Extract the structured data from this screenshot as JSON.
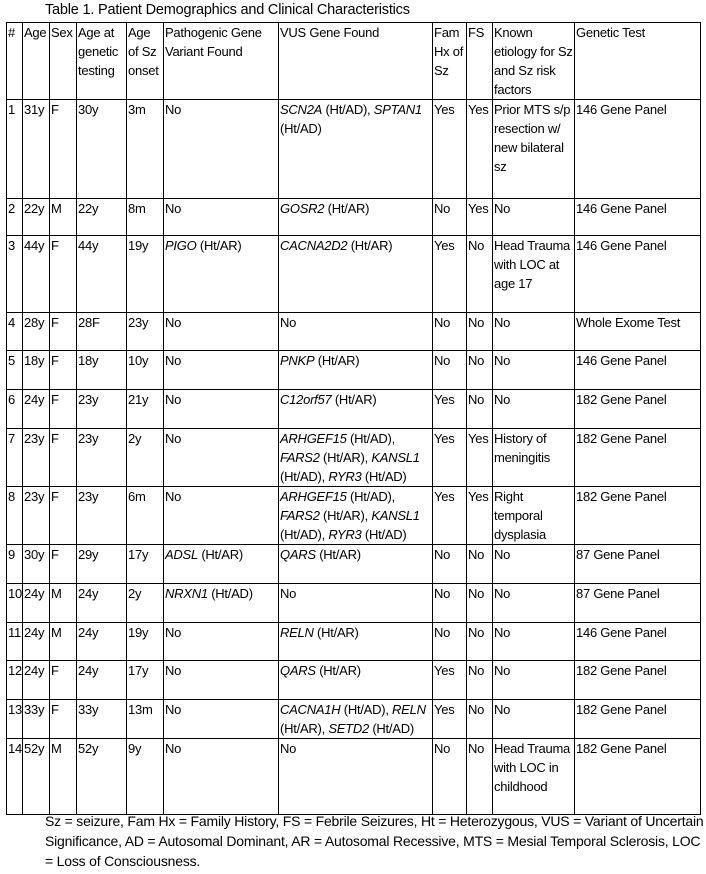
{
  "title": "Table 1. Patient Demographics and Clinical Characteristics",
  "headers": [
    "#",
    "Age",
    "Sex",
    "Age at genetic testing",
    "Age of Sz onset",
    "Pathogenic Gene Variant Found",
    "VUS Gene Found",
    "Fam Hx of Sz",
    "FS",
    "Known etiology for Sz and Sz risk factors",
    "Genetic Test"
  ],
  "rows": [
    {
      "num": "1",
      "age": "31y",
      "sex": "F",
      "age_test": "30y",
      "onset": "3m",
      "pathogenic": [
        {
          "text": "No"
        }
      ],
      "vus": [
        {
          "text": "SCN2A",
          "italic": true
        },
        {
          "text": " (Ht/AD), "
        },
        {
          "text": "SPTAN1",
          "italic": true
        },
        {
          "text": " (Ht/AD)"
        }
      ],
      "famhx": "Yes",
      "fs": "Yes",
      "etiology": "Prior MTS s/p resection w/ new bilateral sz",
      "test": "146 Gene Panel"
    },
    {
      "num": "2",
      "age": "22y",
      "sex": "M",
      "age_test": "22y",
      "onset": "8m",
      "pathogenic": [
        {
          "text": "No"
        }
      ],
      "vus": [
        {
          "text": "GOSR2",
          "italic": true
        },
        {
          "text": " (Ht/AR)"
        }
      ],
      "famhx": "No",
      "fs": "Yes",
      "etiology": "No",
      "test": "146 Gene Panel"
    },
    {
      "num": "3",
      "age": "44y",
      "sex": "F",
      "age_test": "44y",
      "onset": "19y",
      "pathogenic": [
        {
          "text": "PIGO",
          "italic": true
        },
        {
          "text": " (Ht/AR)"
        }
      ],
      "vus": [
        {
          "text": "CACNA2D2",
          "italic": true
        },
        {
          "text": " (Ht/AR)"
        }
      ],
      "famhx": "Yes",
      "fs": "No",
      "etiology": "Head Trauma with LOC at age 17",
      "test": "146 Gene Panel"
    },
    {
      "num": "4",
      "age": "28y",
      "sex": "F",
      "age_test": "28F",
      "onset": "23y",
      "pathogenic": [
        {
          "text": "No"
        }
      ],
      "vus": [
        {
          "text": "No"
        }
      ],
      "famhx": "No",
      "fs": "No",
      "etiology": "No",
      "test": "Whole Exome Test"
    },
    {
      "num": "5",
      "age": "18y",
      "sex": "F",
      "age_test": "18y",
      "onset": "10y",
      "pathogenic": [
        {
          "text": "No"
        }
      ],
      "vus": [
        {
          "text": "PNKP",
          "italic": true
        },
        {
          "text": " (Ht/AR)"
        }
      ],
      "famhx": "No",
      "fs": "No",
      "etiology": "No",
      "test": "146 Gene Panel"
    },
    {
      "num": "6",
      "age": "24y",
      "sex": "F",
      "age_test": "23y",
      "onset": "21y",
      "pathogenic": [
        {
          "text": "No"
        }
      ],
      "vus": [
        {
          "text": "C12orf57",
          "italic": true
        },
        {
          "text": " (Ht/AR)"
        }
      ],
      "famhx": "Yes",
      "fs": "No",
      "etiology": "No",
      "test": "182 Gene Panel"
    },
    {
      "num": "7",
      "age": "23y",
      "sex": "F",
      "age_test": "23y",
      "onset": "2y",
      "pathogenic": [
        {
          "text": "No"
        }
      ],
      "vus": [
        {
          "text": "ARHGEF15",
          "italic": true
        },
        {
          "text": " (Ht/AD), "
        },
        {
          "text": "FARS2",
          "italic": true
        },
        {
          "text": " (Ht/AR), "
        },
        {
          "text": "KANSL1",
          "italic": true
        },
        {
          "text": " (Ht/AD), "
        },
        {
          "text": "RYR3",
          "italic": true
        },
        {
          "text": " (Ht/AD)"
        }
      ],
      "famhx": "Yes",
      "fs": "Yes",
      "etiology": "History of meningitis",
      "test": "182 Gene Panel"
    },
    {
      "num": "8",
      "age": "23y",
      "sex": "F",
      "age_test": "23y",
      "onset": "6m",
      "pathogenic": [
        {
          "text": "No"
        }
      ],
      "vus": [
        {
          "text": "ARHGEF15",
          "italic": true
        },
        {
          "text": " (Ht/AD), "
        },
        {
          "text": "FARS2",
          "italic": true
        },
        {
          "text": " (Ht/AR), "
        },
        {
          "text": "KANSL1",
          "italic": true
        },
        {
          "text": " (Ht/AD), "
        },
        {
          "text": "RYR3",
          "italic": true
        },
        {
          "text": " (Ht/AD)"
        }
      ],
      "famhx": "Yes",
      "fs": "Yes",
      "etiology": "Right temporal dysplasia",
      "test": "182 Gene Panel"
    },
    {
      "num": "9",
      "age": "30y",
      "sex": "F",
      "age_test": "29y",
      "onset": "17y",
      "pathogenic": [
        {
          "text": "ADSL",
          "italic": true
        },
        {
          "text": " (Ht/AR)"
        }
      ],
      "vus": [
        {
          "text": "QARS",
          "italic": true
        },
        {
          "text": " (Ht/AR)"
        }
      ],
      "famhx": "No",
      "fs": "No",
      "etiology": "No",
      "test": "87 Gene Panel"
    },
    {
      "num": "10",
      "age": "24y",
      "sex": "M",
      "age_test": "24y",
      "onset": "2y",
      "pathogenic": [
        {
          "text": "NRXN1",
          "italic": true
        },
        {
          "text": " (Ht/AD)"
        }
      ],
      "vus": [
        {
          "text": "No"
        }
      ],
      "famhx": "No",
      "fs": "No",
      "etiology": "No",
      "test": "87 Gene Panel"
    },
    {
      "num": "11",
      "age": "24y",
      "sex": "M",
      "age_test": "24y",
      "onset": "19y",
      "pathogenic": [
        {
          "text": "No"
        }
      ],
      "vus": [
        {
          "text": "RELN",
          "italic": true
        },
        {
          "text": " (Ht/AR)"
        }
      ],
      "famhx": "No",
      "fs": "No",
      "etiology": "No",
      "test": "146 Gene Panel"
    },
    {
      "num": "12",
      "age": "24y",
      "sex": "F",
      "age_test": "24y",
      "onset": "17y",
      "pathogenic": [
        {
          "text": "No"
        }
      ],
      "vus": [
        {
          "text": "QARS",
          "italic": true
        },
        {
          "text": " (Ht/AR)"
        }
      ],
      "famhx": "Yes",
      "fs": "No",
      "etiology": "No",
      "test": "182 Gene Panel"
    },
    {
      "num": "13",
      "age": "33y",
      "sex": "F",
      "age_test": "33y",
      "onset": "13m",
      "pathogenic": [
        {
          "text": "No"
        }
      ],
      "vus": [
        {
          "text": "CACNA1H",
          "italic": true
        },
        {
          "text": " (Ht/AD), "
        },
        {
          "text": "RELN",
          "italic": true
        },
        {
          "text": " (Ht/AR), "
        },
        {
          "text": "SETD2",
          "italic": true
        },
        {
          "text": " (Ht/AD)"
        }
      ],
      "famhx": "Yes",
      "fs": "No",
      "etiology": "No",
      "test": "182 Gene Panel"
    },
    {
      "num": "14",
      "age": "52y",
      "sex": "M",
      "age_test": "52y",
      "onset": "9y",
      "pathogenic": [
        {
          "text": "No"
        }
      ],
      "vus": [
        {
          "text": "No"
        }
      ],
      "famhx": "No",
      "fs": "No",
      "etiology": "Head Trauma with LOC in childhood",
      "test": "182 Gene Panel"
    }
  ],
  "footnote": "Sz = seizure, Fam Hx = Family History, FS = Febrile Seizures, Ht = Heterozygous, VUS = Variant of Uncertain Significance, AD = Autosomal Dominant, AR = Autosomal Recessive, MTS = Mesial Temporal Sclerosis, LOC = Loss of Consciousness."
}
